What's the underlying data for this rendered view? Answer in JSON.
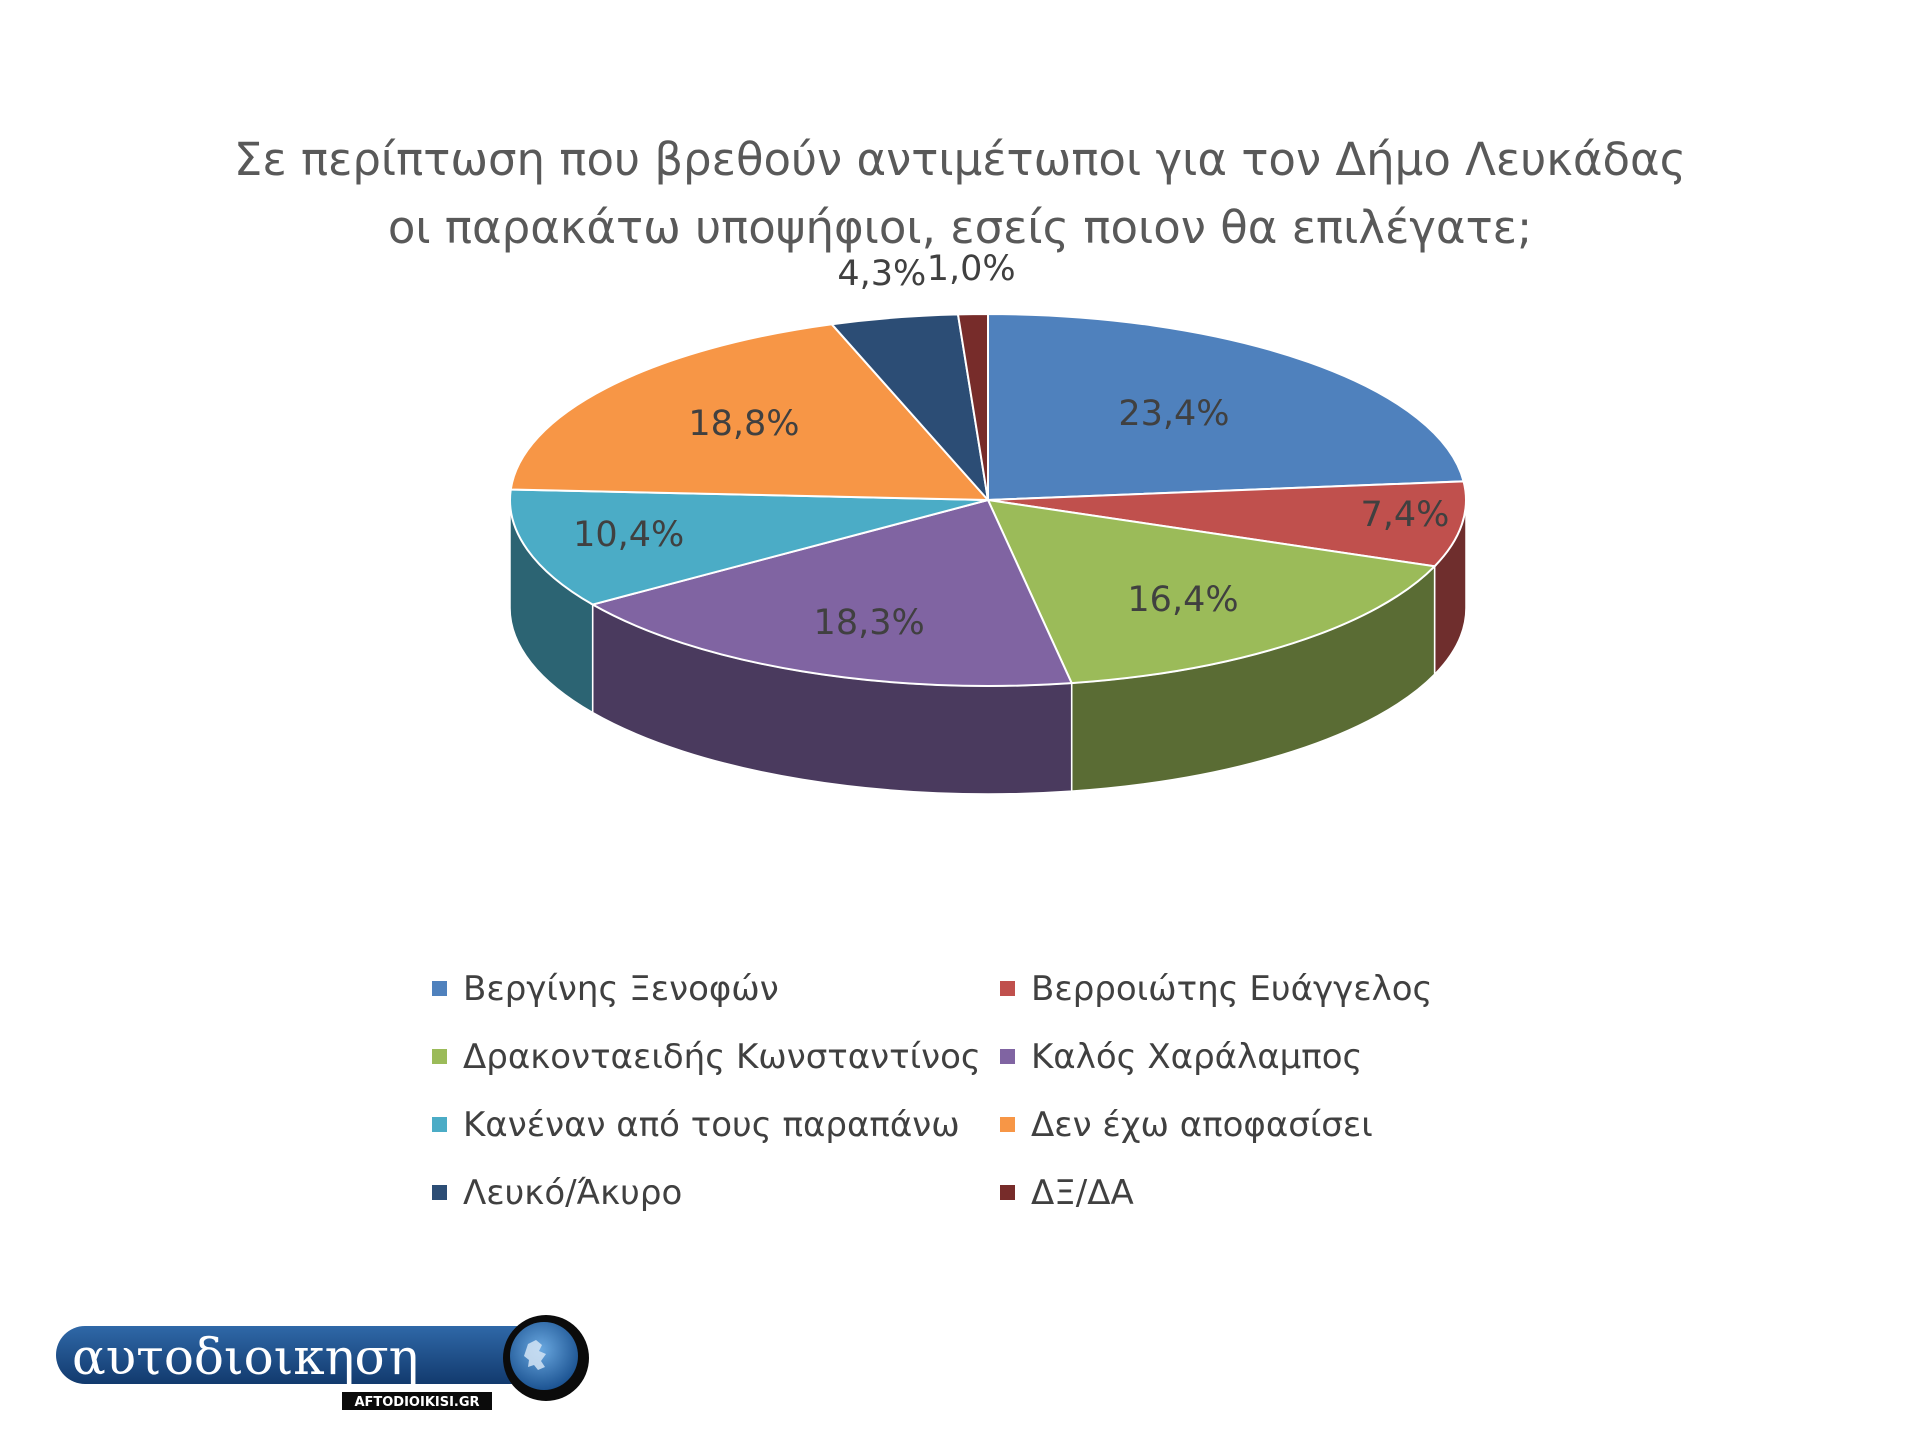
{
  "chart_data": {
    "type": "pie",
    "title_lines": [
      "Σε περίπτωση που βρεθούν αντιμέτωποι για τον Δήμο Λευκάδας",
      "οι παρακάτω υποψήφιοι, εσείς ποιον θα επιλέγατε;"
    ],
    "categories": [
      "Βεργίνης Ξενοφών",
      "Βερροιώτης Ευάγγελος",
      "Δρακονταειδής Κωνσταντίνος",
      "Καλός Χαράλαμπος",
      "Κανέναν από τους παραπάνω",
      "Δεν έχω αποφασίσει",
      "Λευκό/Άκυρο",
      "ΔΞ/ΔΑ"
    ],
    "values": [
      23.4,
      7.4,
      16.4,
      18.3,
      10.4,
      18.8,
      4.3,
      1.0
    ],
    "data_labels": [
      "23,4%",
      "7,4%",
      "16,4%",
      "18,3%",
      "10,4%",
      "18,8%",
      "4,3%",
      "1,0%"
    ],
    "colors": [
      "#4F81BD",
      "#C0504D",
      "#9BBB59",
      "#8064A2",
      "#4BACC6",
      "#F79646",
      "#2C4D75",
      "#772C2A"
    ],
    "legend_position": "bottom",
    "style": "3d-pie"
  },
  "logo": {
    "text": "αυτοδιοικηση",
    "subtext": "AFTODIOIKISI.GR"
  }
}
